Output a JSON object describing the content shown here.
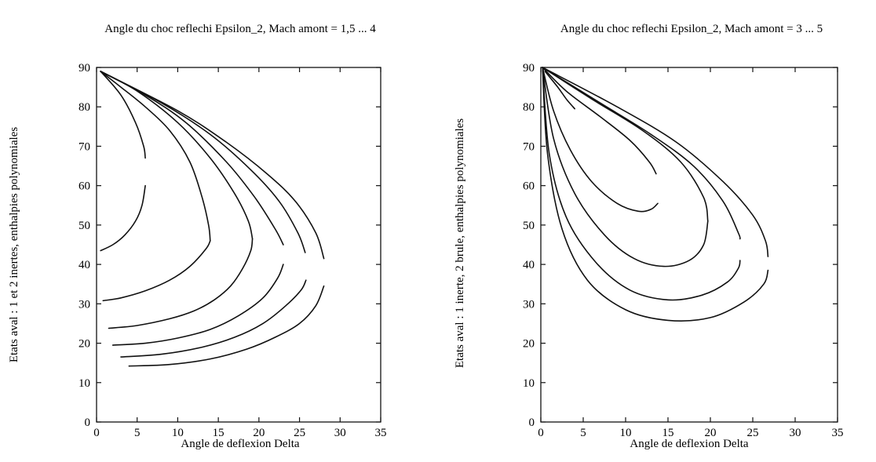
{
  "chart_data": [
    {
      "type": "line",
      "title": "Angle du choc reflechi Epsilon_2, Mach amont = 1,5 ... 4",
      "xlabel": "Angle de deflexion Delta",
      "ylabel": "Etats aval : 1 et 2 inertes, enthalpies polynomiales",
      "xlim": [
        0,
        35
      ],
      "ylim": [
        0,
        90
      ],
      "xticks": [
        0,
        5,
        10,
        15,
        20,
        25,
        30,
        35
      ],
      "yticks": [
        0,
        10,
        20,
        30,
        40,
        50,
        60,
        70,
        80,
        90
      ],
      "grid": false,
      "series": [
        {
          "points": [
            [
              0.5,
              89
            ],
            [
              3,
              83
            ],
            [
              4.8,
              76
            ],
            [
              5.8,
              70
            ],
            [
              6,
              67
            ]
          ]
        },
        {
          "points": [
            [
              0.5,
              43.5
            ],
            [
              2,
              45
            ],
            [
              3.5,
              47.5
            ],
            [
              4.8,
              51
            ],
            [
              5.6,
              55
            ],
            [
              6,
              60
            ]
          ]
        },
        {
          "points": [
            [
              0.5,
              89
            ],
            [
              3,
              85
            ],
            [
              6,
              80
            ],
            [
              9,
              74
            ],
            [
              11.5,
              66
            ],
            [
              13,
              57
            ],
            [
              13.8,
              50
            ],
            [
              14,
              46
            ]
          ]
        },
        {
          "points": [
            [
              0.8,
              30.8
            ],
            [
              3,
              31.5
            ],
            [
              6,
              33.3
            ],
            [
              9,
              36
            ],
            [
              11.5,
              39.5
            ],
            [
              13.5,
              44
            ],
            [
              14,
              46
            ]
          ]
        },
        {
          "points": [
            [
              0.5,
              89
            ],
            [
              5,
              84
            ],
            [
              10,
              76
            ],
            [
              14,
              67
            ],
            [
              17,
              58
            ],
            [
              18.7,
              51
            ],
            [
              19.2,
              46.5
            ]
          ]
        },
        {
          "points": [
            [
              1.5,
              23.8
            ],
            [
              5,
              24.5
            ],
            [
              9,
              26.2
            ],
            [
              12,
              28.2
            ],
            [
              14.5,
              31
            ],
            [
              16.5,
              34.5
            ],
            [
              18,
              39
            ],
            [
              19,
              43.5
            ],
            [
              19.2,
              46.5
            ]
          ]
        },
        {
          "points": [
            [
              0.5,
              89
            ],
            [
              6,
              83
            ],
            [
              11,
              76
            ],
            [
              16,
              66
            ],
            [
              19.5,
              57
            ],
            [
              22,
              49
            ],
            [
              23,
              45
            ]
          ]
        },
        {
          "points": [
            [
              2,
              19.5
            ],
            [
              6,
              20
            ],
            [
              10,
              21.3
            ],
            [
              14,
              23.5
            ],
            [
              17.5,
              27
            ],
            [
              20.5,
              31.5
            ],
            [
              22.3,
              36.5
            ],
            [
              23,
              40
            ]
          ]
        },
        {
          "points": [
            [
              0.5,
              89
            ],
            [
              8,
              81
            ],
            [
              14,
              73
            ],
            [
              19,
              64
            ],
            [
              22.5,
              56
            ],
            [
              24.8,
              48
            ],
            [
              25.7,
              43
            ]
          ]
        },
        {
          "points": [
            [
              3,
              16.5
            ],
            [
              8,
              17.2
            ],
            [
              13,
              19
            ],
            [
              17,
              21.5
            ],
            [
              20.5,
              25
            ],
            [
              23.3,
              29.5
            ],
            [
              25.2,
              33.5
            ],
            [
              25.8,
              36
            ]
          ]
        },
        {
          "points": [
            [
              0.5,
              89
            ],
            [
              10,
              79
            ],
            [
              16,
              71
            ],
            [
              21,
              63
            ],
            [
              24.5,
              56
            ],
            [
              27,
              48
            ],
            [
              28,
              41.5
            ]
          ]
        },
        {
          "points": [
            [
              4,
              14.2
            ],
            [
              9,
              14.6
            ],
            [
              14,
              16
            ],
            [
              18.5,
              18.5
            ],
            [
              22,
              21.5
            ],
            [
              25,
              25
            ],
            [
              27,
              29.5
            ],
            [
              28,
              34.5
            ]
          ]
        }
      ]
    },
    {
      "type": "line",
      "title": "Angle du choc reflechi Epsilon_2, Mach amont = 3 ... 5",
      "xlabel": "Angle de deflexion Delta",
      "ylabel": "Etats aval : 1 inerte, 2 brule, enthalpies polynomiales",
      "xlim": [
        0,
        35
      ],
      "ylim": [
        0,
        90
      ],
      "xticks": [
        0,
        5,
        10,
        15,
        20,
        25,
        30,
        35
      ],
      "yticks": [
        0,
        10,
        20,
        30,
        40,
        50,
        60,
        70,
        80,
        90
      ],
      "grid": false,
      "series": [
        {
          "points": [
            [
              0.5,
              89
            ],
            [
              2,
              85
            ],
            [
              3,
              82
            ],
            [
              3.8,
              80
            ],
            [
              4,
              79.5
            ]
          ]
        },
        {
          "points": [
            [
              0.2,
              90
            ],
            [
              3,
              84
            ],
            [
              7,
              77.5
            ],
            [
              10.5,
              71.5
            ],
            [
              12.8,
              66
            ],
            [
              13.6,
              63
            ]
          ]
        },
        {
          "points": [
            [
              0.2,
              90
            ],
            [
              1.5,
              79
            ],
            [
              3.5,
              69
            ],
            [
              6,
              61
            ],
            [
              9,
              55.5
            ],
            [
              11.5,
              53.5
            ],
            [
              13,
              54
            ],
            [
              13.8,
              55.5
            ]
          ]
        },
        {
          "points": [
            [
              0.2,
              90
            ],
            [
              6,
              82
            ],
            [
              12,
              74
            ],
            [
              16.5,
              66
            ],
            [
              19.2,
              57
            ],
            [
              19.7,
              51
            ]
          ]
        },
        {
          "points": [
            [
              0.2,
              90
            ],
            [
              1.5,
              72
            ],
            [
              4,
              58
            ],
            [
              7.5,
              47.5
            ],
            [
              11,
              41.5
            ],
            [
              14.5,
              39.5
            ],
            [
              17.5,
              41
            ],
            [
              19.2,
              45
            ],
            [
              19.7,
              51
            ]
          ]
        },
        {
          "points": [
            [
              0.2,
              90
            ],
            [
              7,
              81
            ],
            [
              13,
              73
            ],
            [
              18,
              65
            ],
            [
              21.5,
              56
            ],
            [
              23.3,
              48
            ],
            [
              23.5,
              46.5
            ]
          ]
        },
        {
          "points": [
            [
              0.2,
              90
            ],
            [
              1,
              68
            ],
            [
              3,
              52
            ],
            [
              6.5,
              40.5
            ],
            [
              10.5,
              33.5
            ],
            [
              15,
              31
            ],
            [
              19,
              32.2
            ],
            [
              22,
              35.5
            ],
            [
              23.3,
              39
            ],
            [
              23.5,
              41
            ]
          ]
        },
        {
          "points": [
            [
              0.2,
              90
            ],
            [
              9,
              80
            ],
            [
              16,
              71
            ],
            [
              21.5,
              61
            ],
            [
              25,
              52.5
            ],
            [
              26.5,
              46
            ],
            [
              26.8,
              42
            ]
          ]
        },
        {
          "points": [
            [
              0.2,
              90
            ],
            [
              0.8,
              68
            ],
            [
              2.5,
              49
            ],
            [
              5.5,
              36
            ],
            [
              10,
              28.5
            ],
            [
              15,
              25.8
            ],
            [
              20,
              26.5
            ],
            [
              24,
              30.5
            ],
            [
              26.3,
              35
            ],
            [
              26.8,
              38.5
            ]
          ]
        }
      ]
    }
  ]
}
